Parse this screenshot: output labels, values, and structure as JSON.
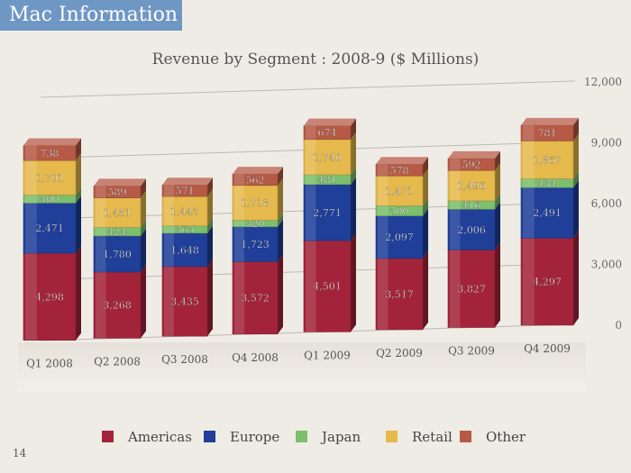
{
  "slide": {
    "title": "Mac Information",
    "page_number": "14"
  },
  "colors": {
    "Americas": "#a3243a",
    "Europe": "#1f3f99",
    "Japan": "#7cbf6c",
    "Retail": "#e5b94c",
    "Other": "#b65a45",
    "header_bg": "#6f97c4"
  },
  "chart_data": {
    "type": "bar",
    "stacked": true,
    "title": "Revenue by Segment : 2008-9 ($ Millions)",
    "categories": [
      "Q1 2008",
      "Q2 2008",
      "Q3 2008",
      "Q4 2008",
      "Q1 2009",
      "Q2 2009",
      "Q3 2009",
      "Q4 2009"
    ],
    "series": [
      {
        "name": "Americas",
        "values": [
          4298,
          3268,
          3435,
          3572,
          4501,
          3517,
          3827,
          4297
        ]
      },
      {
        "name": "Europe",
        "values": [
          2471,
          1780,
          1648,
          1723,
          2771,
          2097,
          2006,
          2491
        ]
      },
      {
        "name": "Japan",
        "values": [
          400,
          424,
          365,
          320,
          481,
          500,
          416,
          434
        ]
      },
      {
        "name": "Retail",
        "values": [
          1701,
          1451,
          1445,
          1718,
          1740,
          1471,
          1496,
          1867
        ]
      },
      {
        "name": "Other",
        "values": [
          738,
          589,
          571,
          562,
          674,
          578,
          592,
          781
        ]
      }
    ],
    "ylim": [
      0,
      12000
    ],
    "yticks": [
      0,
      3000,
      6000,
      9000,
      12000
    ],
    "ytick_labels": [
      "0",
      "3,000",
      "6,000",
      "9,000",
      "12,000"
    ],
    "y_axis_side": "right",
    "grid": true,
    "legend_position": "bottom"
  }
}
